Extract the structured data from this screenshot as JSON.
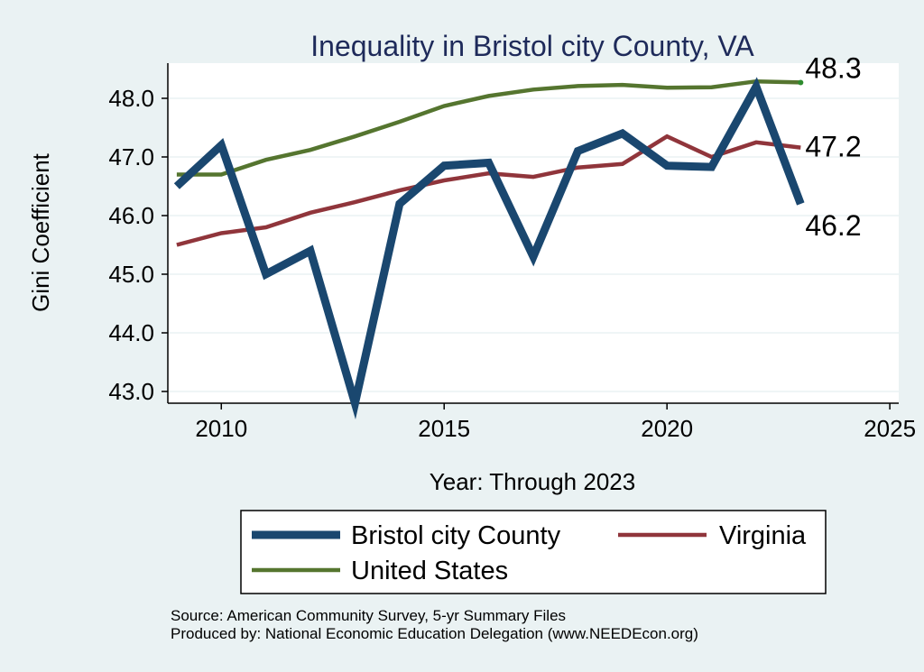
{
  "chart_data": {
    "type": "line",
    "title": "Inequality in Bristol city County, VA",
    "xlabel": "Year: Through 2023",
    "ylabel": "Gini Coefficient",
    "xlim": [
      2008.8,
      2025.2
    ],
    "ylim": [
      42.8,
      48.6
    ],
    "x_ticks": [
      2010,
      2015,
      2020,
      2025
    ],
    "y_ticks": [
      43.0,
      44.0,
      45.0,
      46.0,
      47.0,
      48.0
    ],
    "x_tick_labels": [
      "2010",
      "2015",
      "2020",
      "2025"
    ],
    "y_tick_labels": [
      "43.0",
      "44.0",
      "45.0",
      "46.0",
      "47.0",
      "48.0"
    ],
    "grid": true,
    "x": [
      2009,
      2010,
      2011,
      2012,
      2013,
      2014,
      2015,
      2016,
      2017,
      2018,
      2019,
      2020,
      2021,
      2022,
      2023
    ],
    "series": [
      {
        "name": "Bristol city County",
        "color": "#1a476f",
        "values": [
          46.5,
          47.2,
          45.0,
          45.4,
          42.8,
          46.2,
          46.85,
          46.9,
          45.3,
          47.1,
          47.4,
          46.85,
          46.83,
          48.2,
          46.2
        ],
        "end_label": "46.2"
      },
      {
        "name": "Virginia",
        "color": "#90353b",
        "values": [
          45.5,
          45.7,
          45.8,
          46.05,
          46.23,
          46.43,
          46.6,
          46.72,
          46.66,
          46.82,
          46.88,
          47.35,
          47.0,
          47.25,
          47.16
        ],
        "end_label": "47.2"
      },
      {
        "name": "United States",
        "color": "#55752f",
        "values": [
          46.7,
          46.7,
          46.95,
          47.12,
          47.35,
          47.6,
          47.87,
          48.04,
          48.15,
          48.21,
          48.23,
          48.18,
          48.19,
          48.29,
          48.27
        ],
        "end_label": "48.3"
      }
    ],
    "legend": {
      "position": "bottom",
      "entries": [
        "Bristol city County",
        "Virginia",
        "United States"
      ]
    },
    "notes": [
      "Source: American Community Survey, 5-yr Summary Files",
      "Produced by: National Economic Education Delegation (www.NEEDEcon.org)"
    ],
    "colors": {
      "title": "#1e2a5a",
      "plot_background": "#ffffff",
      "page_background": "#eaf2f3",
      "grid": "#eaf2f3"
    }
  }
}
